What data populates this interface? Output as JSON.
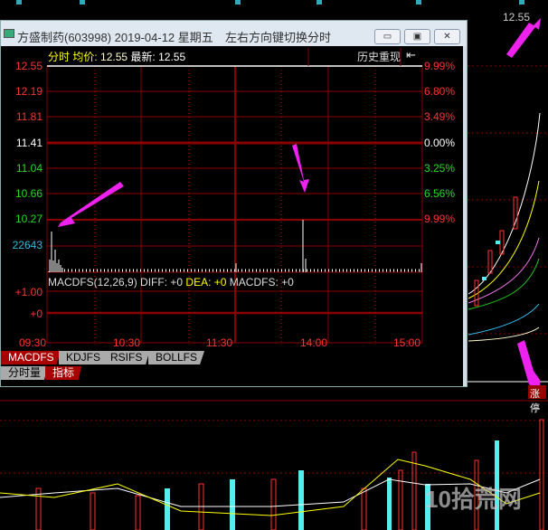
{
  "window": {
    "title": "方盛制药(603998) 2019-04-12 星期五",
    "hint": "左右方向键切换分时",
    "min": "▭",
    "restore": "▣",
    "close": "✕"
  },
  "header": {
    "label": "分时",
    "avg_label": "均价:",
    "avg": "12.55",
    "last_label": "最新:",
    "last": "12.55",
    "history": "历史重现",
    "back": "⇤"
  },
  "price_labels": [
    "12.55",
    "12.19",
    "11.81",
    "11.41",
    "11.04",
    "10.66",
    "10.27"
  ],
  "pct_labels": [
    "9.99%",
    "6.80%",
    "3.49%",
    "0.00%",
    "3.25%",
    "6.56%",
    "9.99%"
  ],
  "volume_max": "22643",
  "macd": {
    "name": "MACDFS(12,26,9)",
    "diff": "DIFF: +0",
    "dea": "DEA: +0",
    "macdfs": "MACDFS: +0",
    "ticks": [
      "+1.00",
      "+0"
    ]
  },
  "time_labels": [
    "09:30",
    "10:30",
    "11:30",
    "14:00",
    "15:00"
  ],
  "tabs": [
    "MACDFS",
    "KDJFS",
    "RSIFS",
    "BOLLFS"
  ],
  "tabs2": [
    "分时量",
    "指标"
  ],
  "bg": {
    "price": "12.55",
    "badge": "涨停"
  },
  "colors": {
    "grid": "#8b0000",
    "up": "#ff3333",
    "down": "#33cccc",
    "arrow": "#ee22ee"
  }
}
